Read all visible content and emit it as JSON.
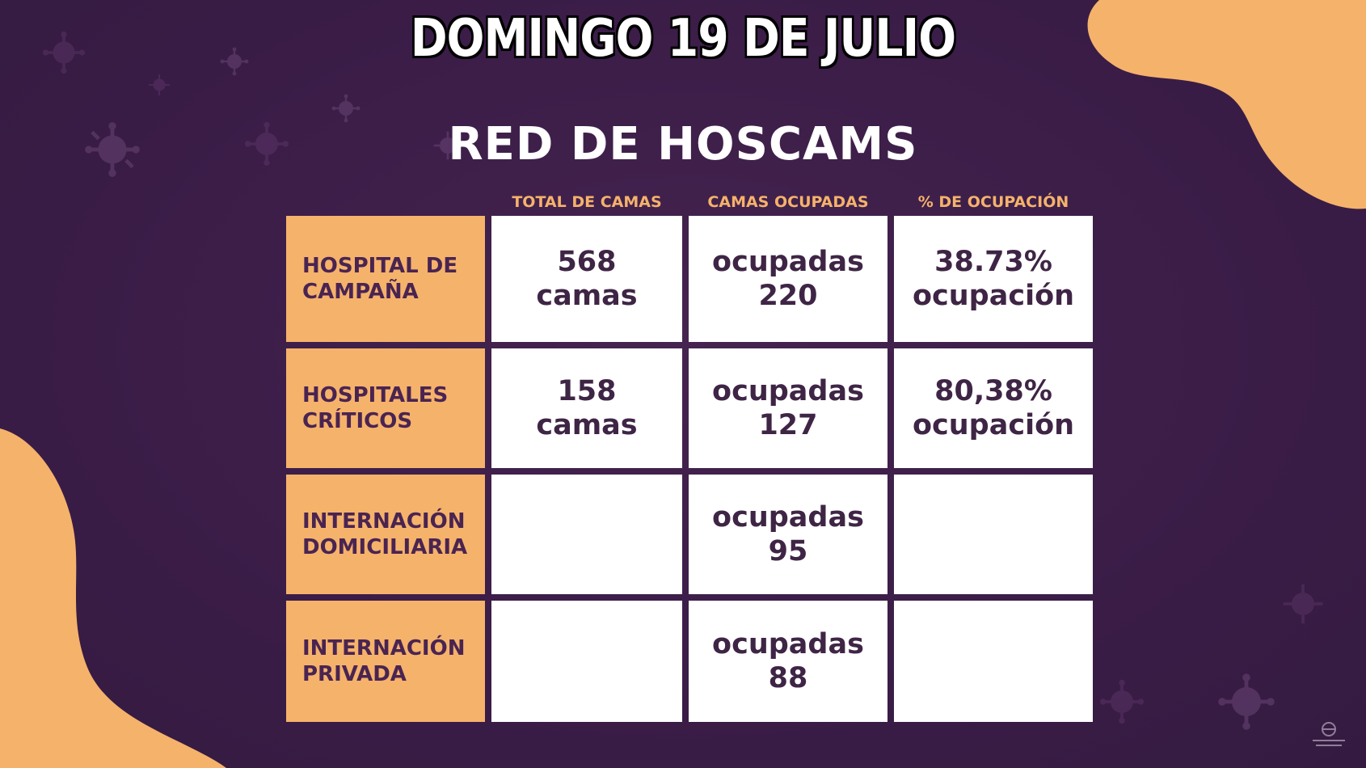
{
  "header": {
    "date": "DOMINGO 19 DE JULIO",
    "title": "RED DE HOSCAMS"
  },
  "table": {
    "columns": [
      "TOTAL DE CAMAS",
      "CAMAS OCUPADAS",
      "% DE OCUPACIÓN"
    ],
    "rows": [
      {
        "label": "HOSPITAL DE\nCAMPAÑA",
        "total": "568\ncamas",
        "ocupadas": "ocupadas\n220",
        "porcentaje": "38.73%\nocupación"
      },
      {
        "label": "HOSPITALES\nCRÍTICOS",
        "total": "158\ncamas",
        "ocupadas": "ocupadas\n127",
        "porcentaje": "80,38%\nocupación"
      },
      {
        "label": "INTERNACIÓN\nDOMICILIARIA",
        "total": "",
        "ocupadas": "ocupadas\n95",
        "porcentaje": ""
      },
      {
        "label": "INTERNACIÓN\nPRIVADA",
        "total": "",
        "ocupadas": "ocupadas\n88",
        "porcentaje": ""
      }
    ]
  },
  "colors": {
    "background": "#3d1f4a",
    "accent_orange": "#f5b26b",
    "label_text": "#4a2451",
    "value_text": "#3f2545",
    "cell_white": "#ffffff"
  },
  "icons": [
    "virus-icon",
    "government-logo-icon"
  ]
}
